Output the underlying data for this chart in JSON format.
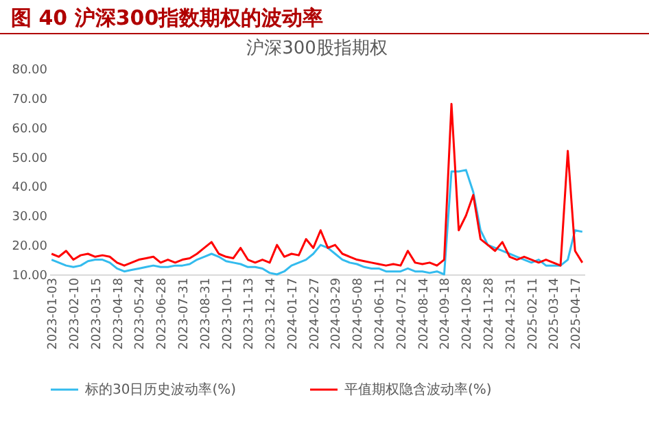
{
  "chart_data": {
    "type": "line",
    "title": "图 40 沪深300指数期权的波动率",
    "subtitle": "沪深300股指期权",
    "categories": [
      "2023-01-03",
      null,
      null,
      "2023-02-10",
      null,
      null,
      "2023-03-15",
      null,
      null,
      "2023-04-18",
      null,
      null,
      "2023-05-24",
      null,
      null,
      "2023-06-28",
      null,
      null,
      "2023-07-31",
      null,
      null,
      "2023-08-31",
      null,
      null,
      "2023-10-11",
      null,
      null,
      "2023-11-13",
      null,
      null,
      "2023-12-14",
      null,
      null,
      "2024-01-17",
      null,
      null,
      "2024-02-27",
      null,
      null,
      "2024-03-29",
      null,
      null,
      "2024-05-08",
      null,
      null,
      "2024-06-11",
      null,
      null,
      "2024-07-12",
      null,
      null,
      "2024-08-14",
      null,
      null,
      "2024-09-18",
      null,
      null,
      "2024-10-28",
      null,
      null,
      "2024-11-28",
      null,
      null,
      "2024-12-31",
      null,
      null,
      "2025-02-11",
      null,
      null,
      "2025-03-14",
      null,
      null,
      "2025-04-17",
      null
    ],
    "series": [
      {
        "name": "标的30日历史波动率(%)",
        "color": "#33bbee",
        "values": [
          15,
          14,
          13,
          12.5,
          13,
          14.5,
          15,
          15,
          14,
          12,
          11,
          11.5,
          12,
          12.5,
          13,
          12.5,
          12.5,
          13,
          13,
          13.5,
          15,
          16,
          17,
          16,
          14.5,
          14,
          13.5,
          12.5,
          12.5,
          12,
          10.5,
          10,
          11,
          13,
          14,
          15,
          17,
          20,
          19,
          17,
          15,
          14,
          13.5,
          12.5,
          12,
          12,
          11,
          11,
          11,
          12,
          11,
          11,
          10.5,
          11,
          10,
          45,
          45,
          45.5,
          38,
          25,
          20,
          19,
          18,
          17,
          16,
          15,
          14,
          15,
          13,
          13,
          13,
          15,
          25,
          24.5
        ]
      },
      {
        "name": "平值期权隐含波动率(%)",
        "color": "#ff0000",
        "values": [
          17,
          16,
          18,
          15,
          16.5,
          17,
          16,
          16.5,
          16,
          14,
          13,
          14,
          15,
          15.5,
          16,
          14,
          15,
          14,
          15,
          15.5,
          17,
          19,
          21,
          17,
          16,
          15.5,
          19,
          15,
          14,
          15,
          14,
          20,
          16,
          17,
          16.5,
          22,
          19,
          25,
          19,
          20,
          17,
          16,
          15,
          14.5,
          14,
          13.5,
          13,
          13.5,
          13,
          18,
          14,
          13.5,
          14,
          13,
          15,
          68,
          25,
          30,
          37,
          22,
          20,
          18,
          21,
          16,
          15,
          16,
          15,
          14,
          15,
          14,
          13,
          52,
          18,
          14
        ]
      }
    ],
    "ylim": [
      10,
      80
    ],
    "yticks": [
      {
        "value": 10,
        "label": "10.00"
      },
      {
        "value": 20,
        "label": "20.00"
      },
      {
        "value": 30,
        "label": "30.00"
      },
      {
        "value": 40,
        "label": "40.00"
      },
      {
        "value": 50,
        "label": "50.00"
      },
      {
        "value": 60,
        "label": "60.00"
      },
      {
        "value": 70,
        "label": "70.00"
      },
      {
        "value": 80,
        "label": "80.00"
      }
    ],
    "grid": false,
    "legend": "bottom",
    "marker": "none",
    "line_style": "solid"
  }
}
